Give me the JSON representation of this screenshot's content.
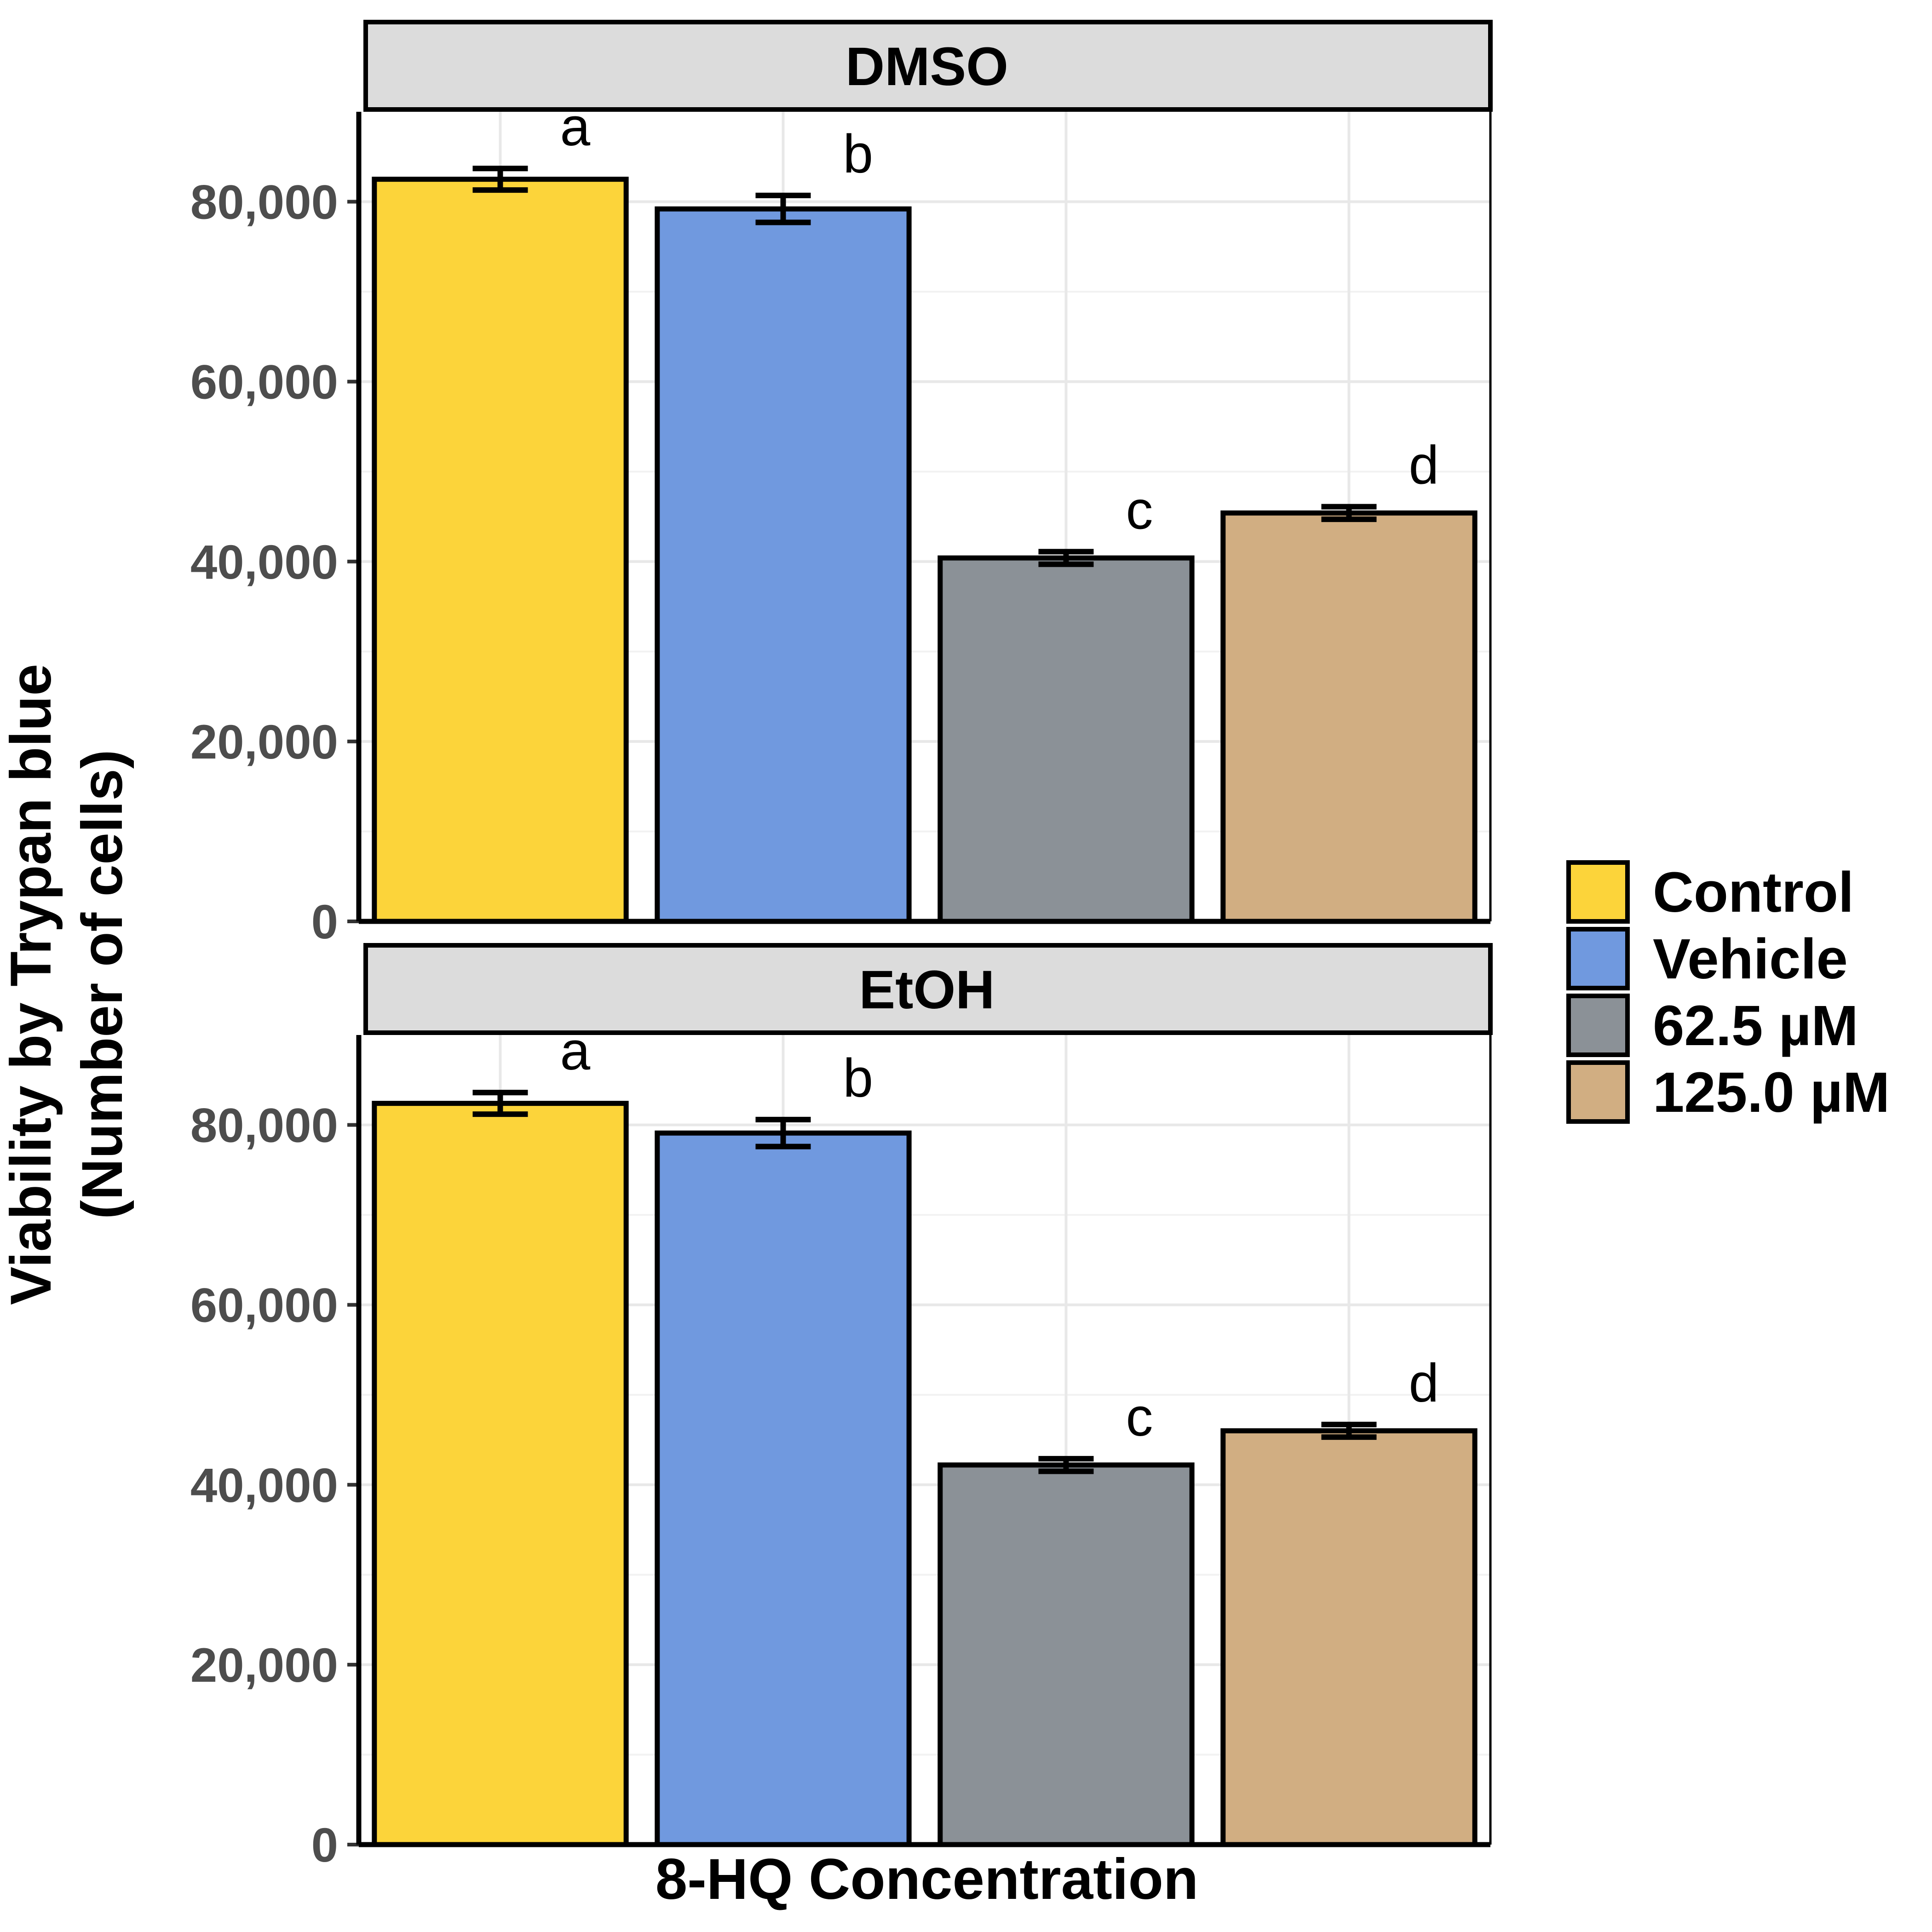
{
  "chart_data": {
    "type": "bar",
    "xlabel": "8-HQ Concentration",
    "ylabel_lines": [
      "Viability by Trypan blue",
      "(Number of cells)"
    ],
    "ylim": [
      0,
      90000
    ],
    "yticks": [
      0,
      20000,
      40000,
      60000,
      80000
    ],
    "ytick_labels": [
      "0",
      "20,000",
      "40,000",
      "60,000",
      "80,000"
    ],
    "grid": true,
    "legend_position": "right",
    "categories": [
      "Control",
      "Vehicle",
      "62.5 µM",
      "125.0 µM"
    ],
    "colors": [
      "#fcd43a",
      "#7099df",
      "#8b9197",
      "#d1ae82"
    ],
    "panels": [
      {
        "title": "DMSO",
        "values": [
          82500,
          79200,
          40400,
          45400
        ],
        "errors": [
          1200,
          1500,
          700,
          700
        ],
        "letters": [
          "a",
          "b",
          "c",
          "d"
        ]
      },
      {
        "title": "EtOH",
        "values": [
          82400,
          79100,
          42200,
          46000
        ],
        "errors": [
          1200,
          1500,
          700,
          700
        ],
        "letters": [
          "a",
          "b",
          "c",
          "d"
        ]
      }
    ]
  }
}
